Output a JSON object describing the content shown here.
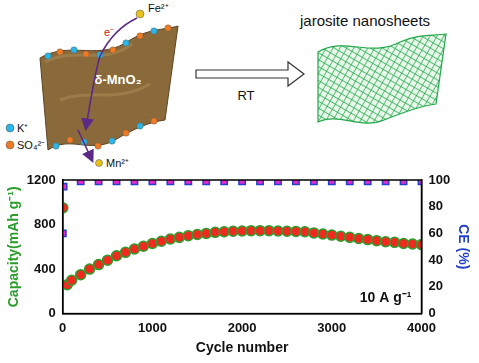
{
  "chart_data": {
    "type": "scatter",
    "x_label": "Cycle number",
    "y_label": "Capacity(mAh g⁻¹)",
    "y2_label": "CE (%)",
    "annotation": "10 A g⁻¹",
    "xlim": [
      0,
      4000
    ],
    "xticks": [
      0,
      1000,
      2000,
      3000,
      4000
    ],
    "ylim": [
      0,
      1200
    ],
    "yticks": [
      0,
      400,
      800,
      1200
    ],
    "y2lim": [
      0,
      100
    ],
    "y2ticks": [
      0,
      20,
      40,
      60,
      80,
      100
    ],
    "grid": false,
    "series": [
      {
        "color": "#ee2b1e",
        "marker": "circle",
        "x": [
          1,
          50,
          100,
          200,
          300,
          400,
          500,
          600,
          700,
          800,
          900,
          1000,
          1100,
          1200,
          1300,
          1400,
          1500,
          1600,
          1700,
          1800,
          1900,
          2000,
          2100,
          2200,
          2300,
          2400,
          2500,
          2600,
          2700,
          2800,
          2900,
          3000,
          3100,
          3200,
          3300,
          3400,
          3500,
          3600,
          3700,
          3800,
          3900,
          4000
        ],
        "values": [
          950,
          260,
          300,
          350,
          400,
          440,
          480,
          520,
          550,
          580,
          605,
          630,
          650,
          670,
          685,
          700,
          710,
          720,
          730,
          735,
          740,
          742,
          745,
          745,
          745,
          742,
          740,
          738,
          735,
          725,
          715,
          705,
          695,
          685,
          675,
          665,
          655,
          645,
          640,
          630,
          625,
          620
        ]
      },
      {
        "color": "#e62ad0",
        "marker": "square",
        "axis": "y2",
        "x": [
          1,
          10,
          200,
          400,
          600,
          800,
          1000,
          1200,
          1400,
          1600,
          1800,
          2000,
          2200,
          2400,
          2600,
          2800,
          3000,
          3200,
          3400,
          3600,
          3800,
          4000
        ],
        "values": [
          60,
          95,
          99,
          99,
          99,
          99,
          99,
          99,
          99,
          99,
          99,
          99,
          99,
          99,
          99,
          99,
          99,
          99,
          99,
          99,
          99,
          99
        ]
      }
    ]
  },
  "diagram": {
    "title": "jarosite nanosheets",
    "condition": "RT",
    "reactant": "Fe²⁺",
    "electron": "e⁻",
    "host": "δ-MnO₂",
    "species": [
      {
        "label": "K⁺",
        "color": "#2bb5e8"
      },
      {
        "label": "SO₄²⁻",
        "color": "#f07a22"
      },
      {
        "label": "Mn²⁺",
        "color": "#e8c21a"
      }
    ]
  }
}
